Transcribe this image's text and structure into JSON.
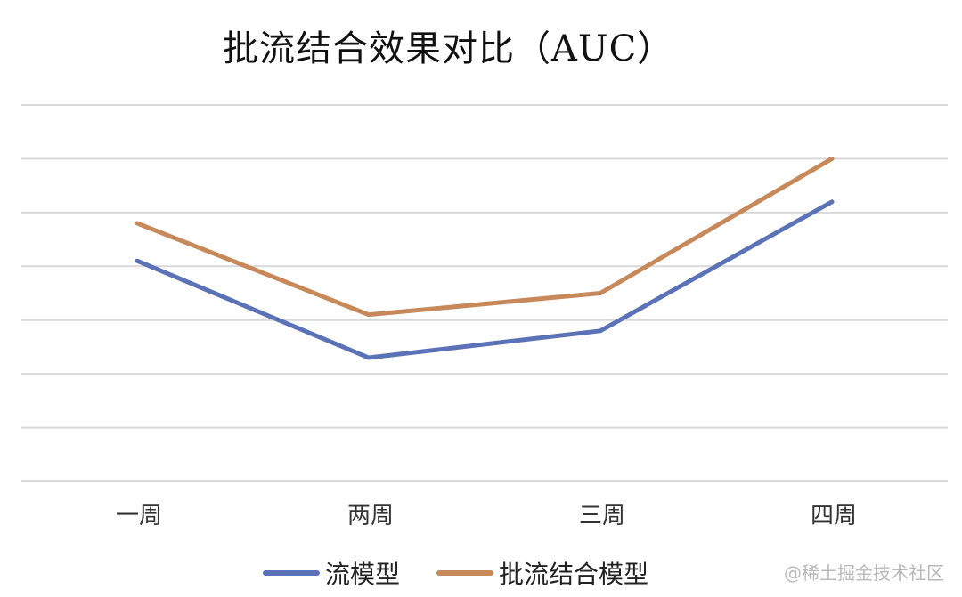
{
  "title": "批流结合效果对比（AUC）",
  "watermark": "@稀土掘金技术社区",
  "chart_data": {
    "type": "line",
    "categories": [
      "一周",
      "两周",
      "三周",
      "四周"
    ],
    "series": [
      {
        "name": "流模型",
        "color": "#5b73b6",
        "values": [
          4.1,
          2.3,
          2.8,
          5.2
        ]
      },
      {
        "name": "批流结合模型",
        "color": "#c8895a",
        "values": [
          4.8,
          3.1,
          3.5,
          6.0
        ]
      }
    ],
    "ylim": [
      0,
      7
    ],
    "gridlines": 7,
    "grid": true,
    "y_tick_labels_shown": false,
    "legend": "bottom"
  }
}
